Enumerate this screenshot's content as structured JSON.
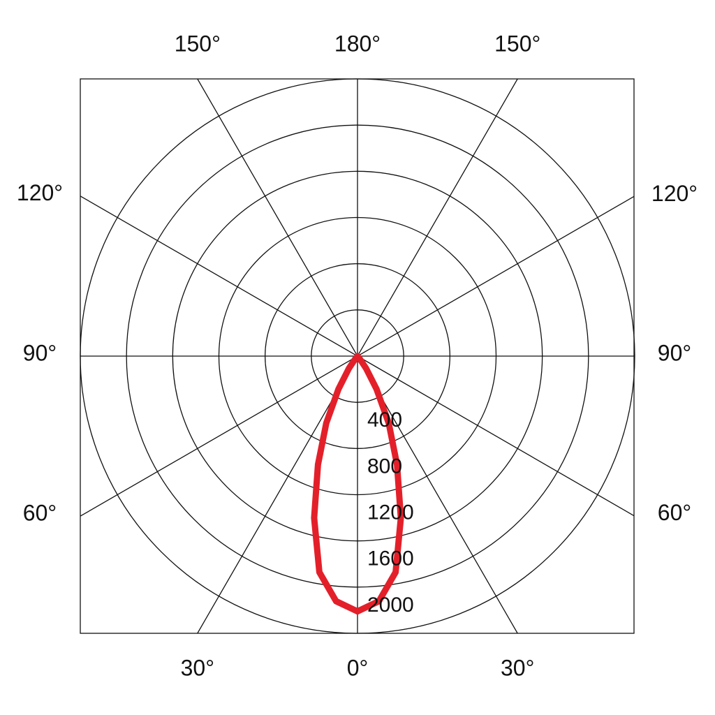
{
  "chart_data": {
    "type": "polar",
    "rlim": [
      0,
      2400
    ],
    "rticks": [
      400,
      800,
      1200,
      1600,
      2000
    ],
    "thetaticks": [
      {
        "value": 0,
        "label": "0°"
      },
      {
        "value": 30,
        "label": "30°"
      },
      {
        "value": 60,
        "label": "60°"
      },
      {
        "value": 90,
        "label": "90°"
      },
      {
        "value": 120,
        "label": "120°"
      },
      {
        "value": 150,
        "label": "150°"
      },
      {
        "value": 180,
        "label": "180°"
      }
    ],
    "symmetric": true,
    "grid": true,
    "series": [
      {
        "color": "#e3202a",
        "theta": [
          0,
          5,
          10,
          15,
          20,
          25,
          30,
          35,
          40,
          45
        ],
        "values": [
          2210,
          2130,
          1900,
          1450,
          1000,
          640,
          330,
          130,
          30,
          0
        ]
      }
    ]
  }
}
